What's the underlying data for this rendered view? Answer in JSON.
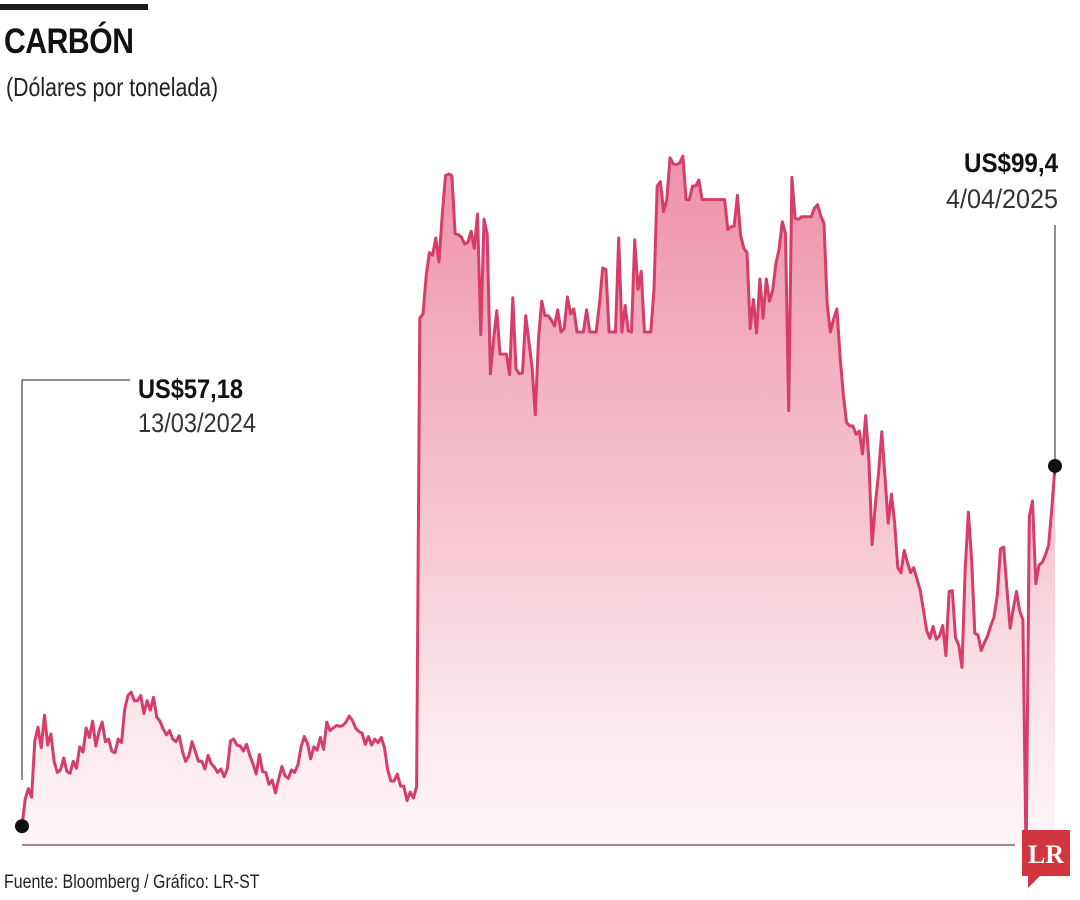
{
  "header": {
    "title": "CARBÓN",
    "subtitle": "(Dólares por tonelada)"
  },
  "footer": {
    "source": "Fuente: Bloomberg / Gráfico: LR-ST"
  },
  "logo": {
    "text": "LR",
    "color": "#d3353e"
  },
  "colors": {
    "line": "#d63d68",
    "fill_top": "#ec8aa4",
    "marker": "#111111"
  },
  "chart_data": {
    "type": "area",
    "title": "CARBÓN",
    "subtitle": "(Dólares por tonelada)",
    "xlabel": "",
    "ylabel": "",
    "ylim": [
      55,
      137
    ],
    "grid": false,
    "x_range": [
      "13/03/2024",
      "4/04/2025"
    ],
    "values": [
      57.2,
      60.4,
      61.6,
      60.6,
      67.2,
      68.8,
      66.4,
      70.2,
      66.7,
      68.0,
      64.8,
      63.5,
      63.8,
      65.2,
      63.6,
      63.4,
      64.8,
      64.0,
      66.5,
      65.9,
      68.7,
      67.6,
      69.5,
      66.6,
      68.3,
      69.4,
      67.1,
      67.4,
      66.0,
      65.8,
      67.4,
      67.0,
      70.9,
      72.5,
      72.9,
      71.9,
      71.9,
      72.5,
      70.4,
      71.9,
      70.8,
      72.3,
      70.0,
      69.5,
      68.6,
      67.9,
      68.4,
      67.4,
      67.1,
      67.8,
      66.0,
      64.8,
      65.4,
      67.1,
      66.0,
      64.8,
      64.8,
      63.9,
      65.5,
      64.5,
      64.1,
      63.5,
      63.9,
      63.0,
      63.9,
      67.2,
      67.4,
      66.7,
      66.6,
      66.0,
      66.8,
      65.5,
      64.5,
      63.3,
      65.6,
      63.6,
      63.5,
      62.1,
      62.6,
      61.1,
      62.7,
      64.2,
      63.1,
      62.8,
      63.8,
      63.5,
      64.4,
      66.5,
      67.7,
      66.9,
      65.1,
      66.5,
      66.1,
      67.6,
      66.2,
      69.4,
      68.4,
      68.7,
      69.0,
      68.9,
      69.0,
      69.4,
      70.1,
      69.6,
      68.7,
      68.3,
      68.1,
      66.8,
      67.7,
      66.7,
      67.4,
      67.0,
      67.6,
      66.4,
      63.8,
      62.5,
      62.5,
      63.3,
      61.9,
      61.9,
      60.2,
      61.2,
      60.5,
      61.8,
      116.7,
      117.2,
      121.7,
      124.4,
      124.1,
      126.1,
      123.3,
      128.9,
      133.4,
      133.6,
      133.4,
      126.6,
      126.5,
      126.2,
      125.4,
      125.6,
      126.9,
      124.9,
      128.9,
      114.8,
      128.3,
      126.6,
      110.2,
      114.2,
      117.6,
      112.5,
      112.5,
      112.5,
      110.1,
      119.1,
      110.8,
      110.2,
      110.3,
      117.0,
      114.0,
      110.9,
      105.4,
      114.3,
      118.7,
      117.0,
      117.0,
      116.5,
      115.8,
      117.7,
      115.1,
      115.5,
      119.2,
      117.2,
      117.8,
      115.1,
      115.1,
      115.1,
      117.7,
      115.1,
      115.1,
      115.1,
      118.4,
      122.6,
      122.4,
      115.1,
      115.1,
      115.1,
      126.1,
      115.1,
      118.2,
      115.2,
      115.1,
      125.9,
      120.1,
      122.2,
      115.1,
      115.1,
      115.1,
      120.1,
      132.2,
      132.7,
      129.2,
      130.6,
      135.5,
      134.8,
      134.7,
      134.9,
      135.7,
      130.6,
      130.6,
      132.2,
      132.2,
      132.9,
      130.6,
      130.6,
      130.6,
      130.6,
      130.6,
      130.6,
      130.6,
      130.6,
      127.1,
      127.4,
      127.5,
      131.1,
      126.4,
      124.9,
      124.4,
      115.5,
      118.9,
      115.0,
      121.3,
      116.7,
      121.3,
      118.7,
      120.0,
      123.1,
      124.8,
      128.0,
      126.6,
      105.9,
      133.2,
      128.4,
      128.3,
      128.6,
      128.6,
      128.6,
      128.6,
      129.6,
      130.0,
      128.7,
      127.8,
      118.3,
      115.1,
      116.6,
      117.8,
      112.2,
      107.8,
      104.5,
      104.1,
      104.1,
      103.1,
      103.5,
      100.8,
      105.3,
      100.1,
      90.2,
      94.8,
      98.6,
      103.4,
      98.1,
      92.7,
      96.1,
      92.8,
      87.5,
      86.9,
      89.5,
      88.1,
      86.9,
      87.5,
      86.1,
      84.8,
      82.5,
      80.1,
      79.2,
      80.6,
      79.1,
      79.5,
      80.7,
      77.2,
      84.7,
      84.8,
      79.3,
      78.4,
      75.8,
      87.3,
      94.0,
      88.5,
      79.8,
      79.6,
      77.8,
      78.7,
      79.5,
      80.7,
      81.7,
      84.3,
      89.7,
      89.9,
      85.1,
      80.4,
      82.7,
      84.7,
      82.4,
      81.4,
      53.3,
      93.5,
      95.3,
      85.6,
      87.8,
      88.1,
      89.0,
      90.1,
      94.4,
      99.4
    ],
    "annotations": [
      {
        "value": "US$57,18",
        "date": "13/03/2024",
        "position": "start"
      },
      {
        "value": "US$99,4",
        "date": "4/04/2025",
        "position": "end"
      }
    ]
  }
}
